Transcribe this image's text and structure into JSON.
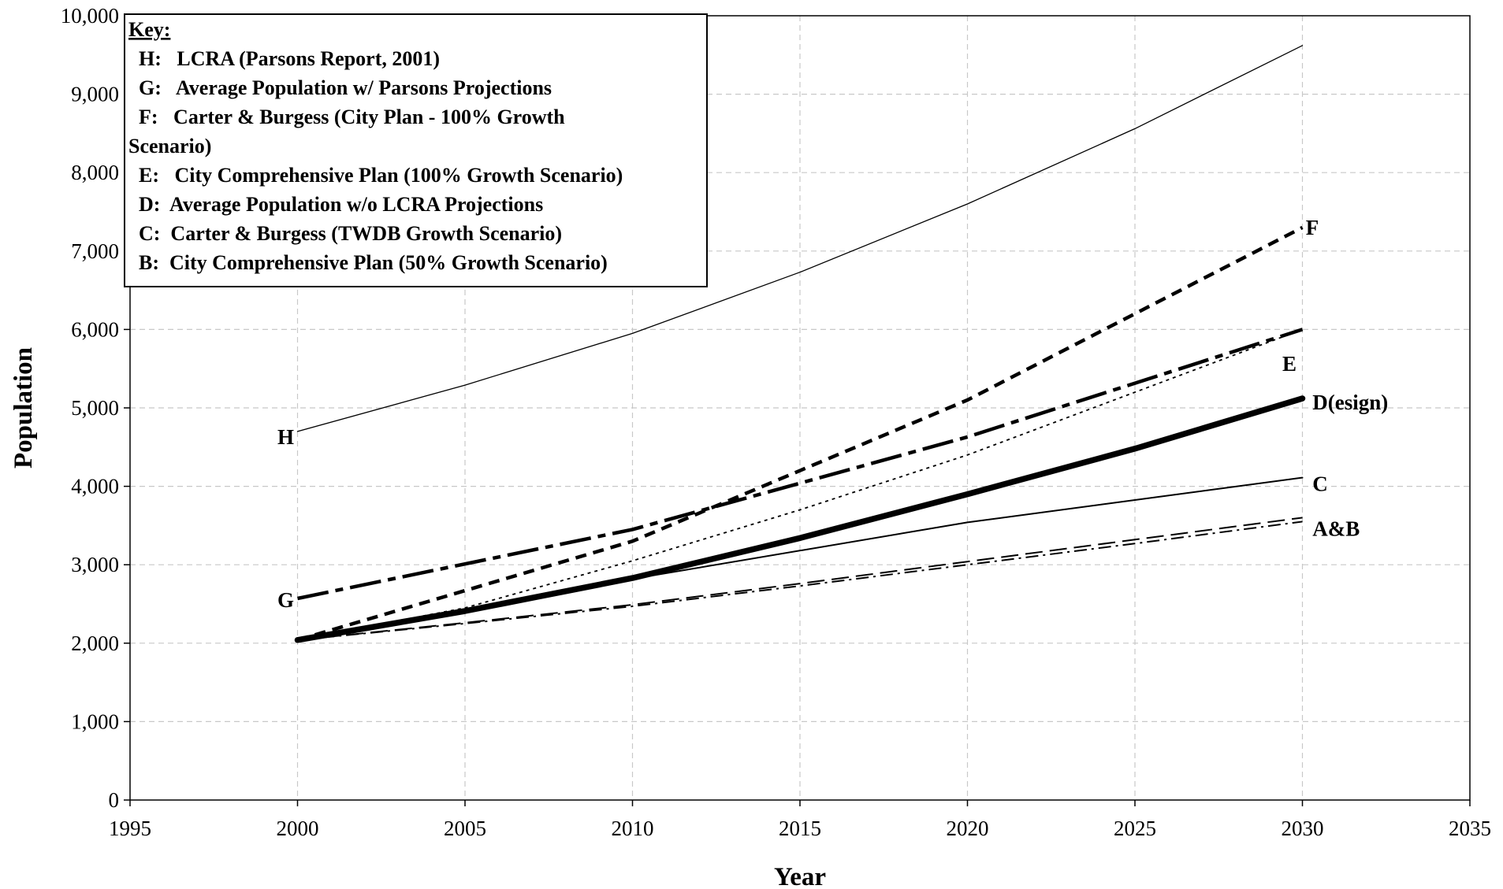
{
  "chart_data": {
    "type": "line",
    "xlabel": "Year",
    "ylabel": "Population",
    "xlim": [
      1995,
      2035
    ],
    "ylim": [
      0,
      10000
    ],
    "x_ticks": [
      1995,
      2000,
      2005,
      2010,
      2015,
      2020,
      2025,
      2030,
      2035
    ],
    "y_ticks": [
      0,
      1000,
      2000,
      3000,
      4000,
      5000,
      6000,
      7000,
      8000,
      9000,
      10000
    ],
    "x_tick_labels": [
      "1995",
      "2000",
      "2005",
      "2010",
      "2015",
      "2020",
      "2025",
      "2030",
      "2035"
    ],
    "y_tick_labels": [
      "0",
      "1,000",
      "2,000",
      "3,000",
      "4,000",
      "5,000",
      "6,000",
      "7,000",
      "8,000",
      "9,000",
      "10,000"
    ],
    "grid": true,
    "legend": {
      "title": "Key:",
      "placement": "top-left",
      "lines": [
        "  H:   LCRA (Parsons Report, 2001)",
        "  G:   Average Population w/ Parsons Projections",
        "  F:   Carter & Burgess (City Plan - 100% Growth",
        "Scenario)",
        "  E:   City Comprehensive Plan (100% Growth Scenario)",
        "  D:  Average Population w/o LCRA Projections",
        "  C:  Carter & Burgess (TWDB Growth Scenario)",
        "  B:  City Comprehensive Plan (50% Growth Scenario)"
      ]
    },
    "series": [
      {
        "key": "H",
        "style": "thin-solid",
        "x": [
          2000,
          2005,
          2010,
          2015,
          2020,
          2025,
          2030
        ],
        "y": [
          4700,
          5290,
          5950,
          6730,
          7600,
          8560,
          9620
        ]
      },
      {
        "key": "G",
        "style": "long-dash-thick",
        "x": [
          2000,
          2010,
          2020,
          2030
        ],
        "y": [
          2570,
          3450,
          4630,
          6000
        ]
      },
      {
        "key": "F",
        "style": "short-dash-thick",
        "x": [
          2000,
          2010,
          2020,
          2030
        ],
        "y": [
          2040,
          3300,
          5100,
          7300
        ]
      },
      {
        "key": "E",
        "style": "dotted",
        "x": [
          2000,
          2005,
          2010,
          2015,
          2020,
          2025,
          2030
        ],
        "y": [
          2040,
          2450,
          3050,
          3700,
          4400,
          5200,
          6000
        ]
      },
      {
        "key": "D",
        "style": "heavy-solid",
        "x": [
          2000,
          2005,
          2010,
          2015,
          2020,
          2025,
          2030
        ],
        "y": [
          2040,
          2410,
          2830,
          3340,
          3900,
          4480,
          5120
        ]
      },
      {
        "key": "C",
        "style": "solid",
        "x": [
          2000,
          2010,
          2020,
          2030
        ],
        "y": [
          2040,
          2820,
          3540,
          4110
        ]
      },
      {
        "key": "A",
        "style": "dash",
        "x": [
          2000,
          2005,
          2010,
          2015,
          2020,
          2025,
          2030
        ],
        "y": [
          2040,
          2260,
          2490,
          2760,
          3040,
          3320,
          3600
        ]
      },
      {
        "key": "B",
        "style": "dash-dot",
        "x": [
          2000,
          2005,
          2010,
          2015,
          2020,
          2025,
          2030
        ],
        "y": [
          2040,
          2250,
          2470,
          2730,
          3000,
          3270,
          3550
        ]
      }
    ],
    "annotations": [
      {
        "text": "H",
        "x": 1999.4,
        "y": 4630
      },
      {
        "text": "G",
        "x": 1999.4,
        "y": 2550
      },
      {
        "text": "F",
        "x": 2030.1,
        "y": 7300
      },
      {
        "text": "E",
        "x": 2029.4,
        "y": 5560
      },
      {
        "text": "D(esign)",
        "x": 2030.3,
        "y": 5070
      },
      {
        "text": "C",
        "x": 2030.3,
        "y": 4030
      },
      {
        "text": "A&B",
        "x": 2030.3,
        "y": 3460
      }
    ]
  }
}
